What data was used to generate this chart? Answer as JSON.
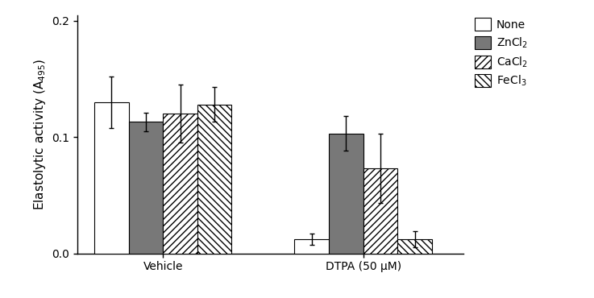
{
  "groups": [
    "Vehicle",
    "DTPA (50 μM)"
  ],
  "series": [
    "None",
    "ZnCl₂",
    "CaCl₂",
    "FeCl₃"
  ],
  "values": [
    [
      0.13,
      0.113,
      0.12,
      0.128
    ],
    [
      0.012,
      0.103,
      0.073,
      0.012
    ]
  ],
  "errors": [
    [
      0.022,
      0.008,
      0.025,
      0.015
    ],
    [
      0.005,
      0.015,
      0.03,
      0.007
    ]
  ],
  "bar_colors": [
    "#ffffff",
    "#787878",
    "#ffffff",
    "#ffffff"
  ],
  "bar_hatches": [
    "",
    "",
    "////",
    "\\\\\\\\"
  ],
  "bar_edgecolors": [
    "#000000",
    "#000000",
    "#000000",
    "#000000"
  ],
  "ylim": [
    0.0,
    0.205
  ],
  "yticks": [
    0.0,
    0.1,
    0.2
  ],
  "background_color": "#ffffff",
  "legend_fontsize": 10,
  "axis_fontsize": 11,
  "tick_fontsize": 10,
  "bar_width": 0.12,
  "group_centers": [
    0.3,
    1.0
  ]
}
